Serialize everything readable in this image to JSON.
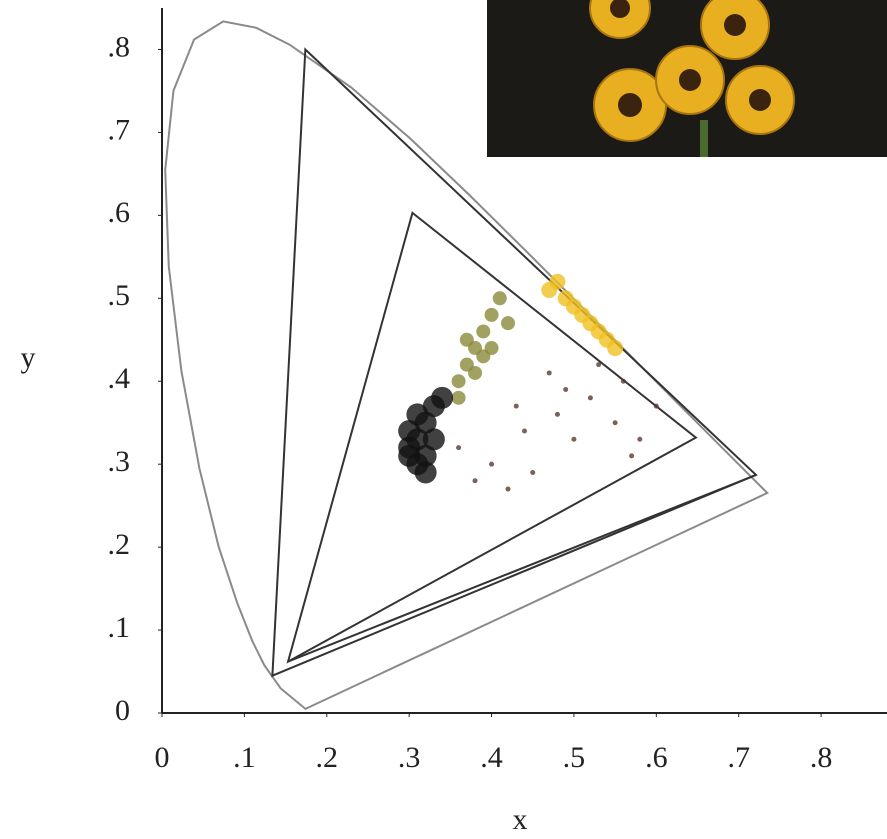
{
  "chart_data": {
    "type": "scatter",
    "x_label": "x",
    "y_label": "y",
    "xlim": [
      0,
      0.88
    ],
    "ylim": [
      0,
      0.85
    ],
    "xticks": [
      0,
      {
        "value": 0.1,
        "label": ".1"
      },
      {
        "value": 0.2,
        "label": ".2"
      },
      {
        "value": 0.3,
        "label": ".3"
      },
      {
        "value": 0.4,
        "label": ".4"
      },
      {
        "value": 0.5,
        "label": ".5"
      },
      {
        "value": 0.6,
        "label": ".6"
      },
      {
        "value": 0.7,
        "label": ".7"
      },
      {
        "value": 0.8,
        "label": ".8"
      }
    ],
    "yticks": [
      0,
      {
        "value": 0.1,
        "label": ".1"
      },
      {
        "value": 0.2,
        "label": ".2"
      },
      {
        "value": 0.3,
        "label": ".3"
      },
      {
        "value": 0.4,
        "label": ".4"
      },
      {
        "value": 0.5,
        "label": ".5"
      },
      {
        "value": 0.6,
        "label": ".6"
      },
      {
        "value": 0.7,
        "label": ".7"
      },
      {
        "value": 0.8,
        "label": ".8"
      }
    ],
    "outlines": [
      {
        "color": "#8a8a8a",
        "x": [
          0.1741,
          0.144,
          0.1241,
          0.1096,
          0.0913,
          0.0687,
          0.0454,
          0.0235,
          0.0082,
          0.0039,
          0.0139,
          0.0389,
          0.0743,
          0.1142,
          0.1547,
          0.2296,
          0.3016,
          0.3731,
          0.4441,
          0.5125,
          0.5752,
          0.627,
          0.6915,
          0.7347
        ],
        "y": [
          0.005,
          0.0297,
          0.0578,
          0.0868,
          0.1327,
          0.2007,
          0.295,
          0.4127,
          0.5384,
          0.6548,
          0.7502,
          0.812,
          0.8338,
          0.8262,
          0.8059,
          0.7543,
          0.6923,
          0.6245,
          0.5547,
          0.4866,
          0.4242,
          0.3725,
          0.3083,
          0.2653
        ]
      },
      {
        "color": "#333333",
        "x": [
          0.174,
          0.721,
          0.134
        ],
        "y": [
          0.8,
          0.287,
          0.045
        ]
      },
      {
        "color": "#333333",
        "x": [
          0.304,
          0.648,
          0.153
        ],
        "y": [
          0.603,
          0.332,
          0.062
        ]
      },
      {
        "color": "#333333",
        "x": [
          0.153,
          0.721
        ],
        "y": [
          0.062,
          0.287
        ]
      }
    ],
    "series": [
      {
        "color": "#5a3a30",
        "x": [
          0.36,
          0.4,
          0.44,
          0.48,
          0.52,
          0.56,
          0.6,
          0.45,
          0.5,
          0.55,
          0.42,
          0.58,
          0.47,
          0.38,
          0.53,
          0.57,
          0.43,
          0.49
        ],
        "y": [
          0.32,
          0.3,
          0.34,
          0.36,
          0.38,
          0.4,
          0.37,
          0.29,
          0.33,
          0.35,
          0.27,
          0.33,
          0.41,
          0.28,
          0.42,
          0.31,
          0.37,
          0.39
        ]
      },
      {
        "color": "#8a8a3a",
        "x": [
          0.36,
          0.37,
          0.38,
          0.39,
          0.4,
          0.41,
          0.37,
          0.39,
          0.42,
          0.38,
          0.4,
          0.36
        ],
        "y": [
          0.4,
          0.42,
          0.44,
          0.46,
          0.48,
          0.5,
          0.45,
          0.43,
          0.47,
          0.41,
          0.44,
          0.38
        ]
      },
      {
        "color": "#f0c020",
        "x": [
          0.47,
          0.49,
          0.51,
          0.53,
          0.55,
          0.5,
          0.52,
          0.54,
          0.48
        ],
        "y": [
          0.51,
          0.5,
          0.48,
          0.46,
          0.44,
          0.49,
          0.47,
          0.45,
          0.52
        ]
      },
      {
        "color": "#111111",
        "x": [
          0.3,
          0.31,
          0.32,
          0.31,
          0.3,
          0.33,
          0.32,
          0.31,
          0.3,
          0.32,
          0.33,
          0.34
        ],
        "y": [
          0.32,
          0.3,
          0.31,
          0.33,
          0.34,
          0.33,
          0.35,
          0.36,
          0.31,
          0.29,
          0.37,
          0.38
        ]
      }
    ]
  }
}
